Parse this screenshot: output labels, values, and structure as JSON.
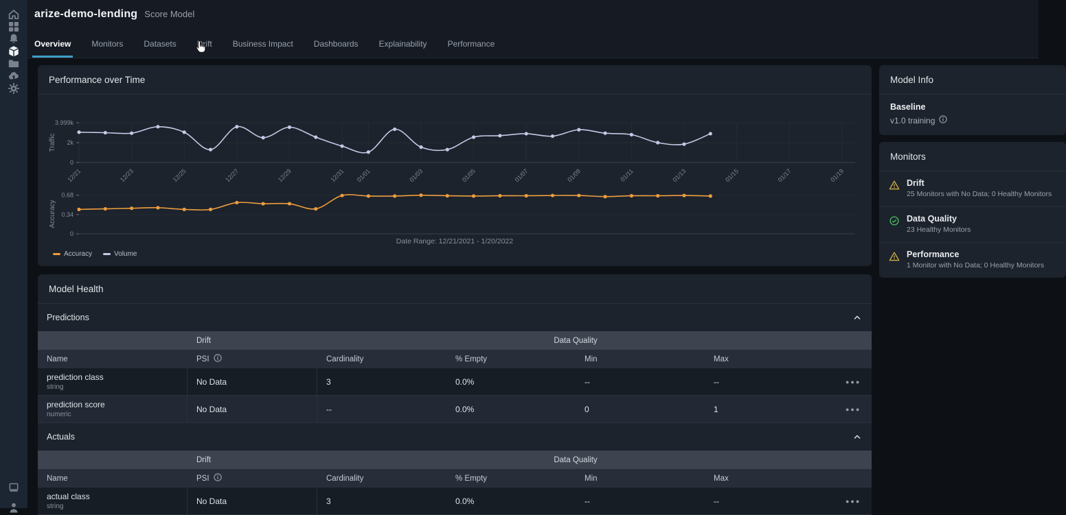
{
  "header": {
    "model_name": "arize-demo-lending",
    "model_type": "Score Model"
  },
  "sidebar": {
    "top_icons": [
      "home",
      "apps",
      "notifications",
      "models",
      "projects",
      "deployments",
      "settings"
    ],
    "bottom_icons": [
      "terminal",
      "account"
    ]
  },
  "tabs": [
    {
      "label": "Overview",
      "active": true
    },
    {
      "label": "Monitors",
      "active": false
    },
    {
      "label": "Datasets",
      "active": false
    },
    {
      "label": "Drift",
      "active": false,
      "cursor": true
    },
    {
      "label": "Business Impact",
      "active": false
    },
    {
      "label": "Dashboards",
      "active": false
    },
    {
      "label": "Explainability",
      "active": false
    },
    {
      "label": "Performance",
      "active": false
    }
  ],
  "performance": {
    "title": "Performance over Time",
    "caption": "Date Range: 12/21/2021 - 1/20/2022",
    "legend": [
      {
        "label": "Accuracy",
        "color": "#ee9d3e"
      },
      {
        "label": "Volume",
        "color": "#c9c7e6"
      }
    ]
  },
  "chart_data": [
    {
      "type": "line",
      "title": "Traffic",
      "ylabel": "Traffic",
      "color": "#c9c7e6",
      "grid": "xy",
      "smooth": true,
      "legend_name": "Volume",
      "dates": [
        "12/21",
        "12/22",
        "12/23",
        "12/24",
        "12/25",
        "12/26",
        "12/27",
        "12/28",
        "12/29",
        "12/30",
        "12/31",
        "01/01",
        "01/02",
        "01/03",
        "01/04",
        "01/05",
        "01/06",
        "01/07",
        "01/08",
        "01/09",
        "01/10",
        "01/11",
        "01/12",
        "01/13",
        "01/14"
      ],
      "values": [
        3050,
        3000,
        2950,
        3600,
        3050,
        1300,
        3600,
        2500,
        3550,
        2550,
        1650,
        1050,
        3350,
        1550,
        1300,
        2550,
        2700,
        2900,
        2650,
        3300,
        2950,
        2800,
        2000,
        1850,
        2900
      ],
      "ylim": [
        0,
        3999
      ],
      "yticks": [
        [
          0,
          "0"
        ],
        [
          2000,
          "2k"
        ],
        [
          3999,
          "3.999k"
        ]
      ],
      "xticks": [
        [
          0,
          "12/21"
        ],
        [
          2,
          "12/23"
        ],
        [
          4,
          "12/25"
        ],
        [
          6,
          "12/27"
        ],
        [
          8,
          "12/29"
        ],
        [
          10,
          "12/31"
        ],
        [
          11,
          "01/01"
        ],
        [
          13,
          "01/03"
        ],
        [
          15,
          "01/05"
        ],
        [
          17,
          "01/07"
        ],
        [
          19,
          "01/09"
        ],
        [
          21,
          "01/11"
        ],
        [
          23,
          "01/13"
        ],
        [
          25,
          "01/15"
        ],
        [
          27,
          "01/17"
        ],
        [
          29,
          "01/19"
        ]
      ],
      "x_max_days": 29.5
    },
    {
      "type": "line",
      "title": "Accuracy",
      "ylabel": "Accuracy",
      "color": "#ee9d3e",
      "grid": "y",
      "smooth": true,
      "legend_name": "Accuracy",
      "dates": [
        "12/21",
        "12/22",
        "12/23",
        "12/24",
        "12/25",
        "12/26",
        "12/27",
        "12/28",
        "12/29",
        "12/30",
        "12/31",
        "01/01",
        "01/02",
        "01/03",
        "01/04",
        "01/05",
        "01/06",
        "01/07",
        "01/08",
        "01/09",
        "01/10",
        "01/11",
        "01/12",
        "01/13",
        "01/14"
      ],
      "values": [
        0.43,
        0.44,
        0.45,
        0.46,
        0.43,
        0.43,
        0.55,
        0.53,
        0.53,
        0.44,
        0.675,
        0.665,
        0.665,
        0.68,
        0.67,
        0.665,
        0.67,
        0.67,
        0.675,
        0.675,
        0.655,
        0.67,
        0.67,
        0.675,
        0.665
      ],
      "ylim": [
        0,
        0.7
      ],
      "yticks": [
        [
          0,
          "0"
        ],
        [
          0.34,
          "0.34"
        ],
        [
          0.68,
          "0.68"
        ]
      ],
      "xticks": [
        [
          0,
          "12/21"
        ],
        [
          2,
          "12/23"
        ],
        [
          4,
          "12/25"
        ],
        [
          6,
          "12/27"
        ],
        [
          8,
          "12/29"
        ],
        [
          10,
          "12/31"
        ],
        [
          11,
          "01/01"
        ],
        [
          13,
          "01/03"
        ],
        [
          15,
          "01/05"
        ],
        [
          17,
          "01/07"
        ],
        [
          19,
          "01/09"
        ],
        [
          21,
          "01/11"
        ],
        [
          23,
          "01/13"
        ],
        [
          25,
          "01/15"
        ],
        [
          27,
          "01/17"
        ],
        [
          29,
          "01/19"
        ]
      ],
      "x_max_days": 29.5
    }
  ],
  "model_health": {
    "title": "Model Health",
    "sections": [
      {
        "title": "Predictions",
        "group_headers": [
          "Drift",
          "Data Quality"
        ],
        "columns": [
          "Name",
          "PSI",
          "Cardinality",
          "% Empty",
          "Min",
          "Max"
        ],
        "rows": [
          {
            "name": "prediction class",
            "type": "string",
            "psi": "No Data",
            "cardinality": "3",
            "empty": "0.0%",
            "min": "--",
            "max": "--"
          },
          {
            "name": "prediction score",
            "type": "numeric",
            "psi": "No Data",
            "cardinality": "--",
            "empty": "0.0%",
            "min": "0",
            "max": "1"
          }
        ]
      },
      {
        "title": "Actuals",
        "group_headers": [
          "Drift",
          "Data Quality"
        ],
        "columns": [
          "Name",
          "PSI",
          "Cardinality",
          "% Empty",
          "Min",
          "Max"
        ],
        "rows": [
          {
            "name": "actual class",
            "type": "string",
            "psi": "No Data",
            "cardinality": "3",
            "empty": "0.0%",
            "min": "--",
            "max": "--"
          }
        ]
      }
    ]
  },
  "model_info": {
    "title": "Model Info",
    "baseline_label": "Baseline",
    "baseline_value": "v1.0 training"
  },
  "monitors": {
    "title": "Monitors",
    "items": [
      {
        "label": "Drift",
        "status": "warning",
        "detail": "25 Monitors with No Data; 0 Healthy Monitors"
      },
      {
        "label": "Data Quality",
        "status": "healthy",
        "detail": "23 Healthy Monitors"
      },
      {
        "label": "Performance",
        "status": "warning",
        "detail": "1 Monitor with No Data; 0 Healthy Monitors"
      }
    ]
  },
  "colors": {
    "accent": "#3f9fc4",
    "warning": "#d9b444",
    "healthy": "#4cbb5f",
    "accuracy_line": "#ee9d3e",
    "volume_line": "#c9c7e6"
  }
}
